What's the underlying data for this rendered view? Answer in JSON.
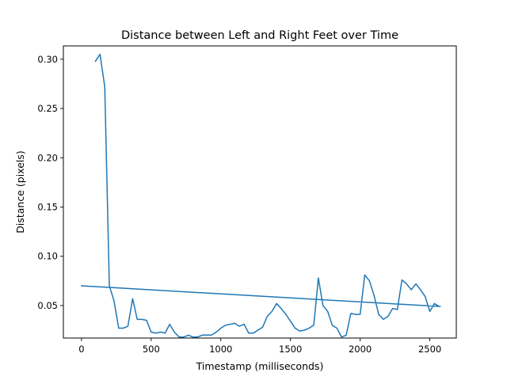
{
  "chart_data": {
    "type": "line",
    "title": "Distance between Left and Right Feet over Time",
    "xlabel": "Timestamp (milliseconds)",
    "ylabel": "Distance (pixels)",
    "xlim": [
      -130,
      2690
    ],
    "ylim": [
      0.017,
      0.3135
    ],
    "xticks": [
      0,
      500,
      1000,
      1500,
      2000,
      2500
    ],
    "xtick_labels": [
      "0",
      "500",
      "1000",
      "1500",
      "2000",
      "2500"
    ],
    "yticks": [
      0.05,
      0.1,
      0.15,
      0.2,
      0.25,
      0.3
    ],
    "ytick_labels": [
      "0.05",
      "0.10",
      "0.15",
      "0.20",
      "0.25",
      "0.30"
    ],
    "grid": false,
    "legend": false,
    "series": [
      {
        "color": "#1f77b4",
        "points": [
          [
            100,
            0.298
          ],
          [
            133,
            0.305
          ],
          [
            167,
            0.272
          ],
          [
            200,
            0.07
          ],
          [
            233,
            0.055
          ],
          [
            267,
            0.027
          ],
          [
            300,
            0.027
          ],
          [
            333,
            0.029
          ],
          [
            367,
            0.057
          ],
          [
            400,
            0.036
          ],
          [
            433,
            0.036
          ],
          [
            467,
            0.035
          ],
          [
            500,
            0.023
          ],
          [
            533,
            0.022
          ],
          [
            567,
            0.023
          ],
          [
            600,
            0.022
          ],
          [
            633,
            0.031
          ],
          [
            667,
            0.023
          ],
          [
            700,
            0.018
          ],
          [
            733,
            0.018
          ],
          [
            767,
            0.02
          ],
          [
            800,
            0.018
          ],
          [
            833,
            0.018
          ],
          [
            867,
            0.02
          ],
          [
            900,
            0.02
          ],
          [
            933,
            0.02
          ],
          [
            967,
            0.023
          ],
          [
            1000,
            0.027
          ],
          [
            1033,
            0.03
          ],
          [
            1067,
            0.031
          ],
          [
            1100,
            0.032
          ],
          [
            1133,
            0.029
          ],
          [
            1167,
            0.031
          ],
          [
            1200,
            0.022
          ],
          [
            1233,
            0.022
          ],
          [
            1267,
            0.025
          ],
          [
            1300,
            0.028
          ],
          [
            1333,
            0.039
          ],
          [
            1367,
            0.044
          ],
          [
            1400,
            0.052
          ],
          [
            1433,
            0.047
          ],
          [
            1467,
            0.041
          ],
          [
            1500,
            0.034
          ],
          [
            1533,
            0.027
          ],
          [
            1567,
            0.024
          ],
          [
            1600,
            0.025
          ],
          [
            1633,
            0.027
          ],
          [
            1667,
            0.03
          ],
          [
            1700,
            0.078
          ],
          [
            1733,
            0.05
          ],
          [
            1767,
            0.044
          ],
          [
            1800,
            0.03
          ],
          [
            1833,
            0.027
          ],
          [
            1867,
            0.018
          ],
          [
            1900,
            0.02
          ],
          [
            1933,
            0.042
          ],
          [
            1967,
            0.041
          ],
          [
            2000,
            0.041
          ],
          [
            2033,
            0.081
          ],
          [
            2067,
            0.075
          ],
          [
            2100,
            0.06
          ],
          [
            2133,
            0.041
          ],
          [
            2167,
            0.036
          ],
          [
            2200,
            0.039
          ],
          [
            2233,
            0.047
          ],
          [
            2267,
            0.046
          ],
          [
            2300,
            0.076
          ],
          [
            2333,
            0.072
          ],
          [
            2367,
            0.066
          ],
          [
            2400,
            0.072
          ],
          [
            2433,
            0.066
          ],
          [
            2467,
            0.059
          ],
          [
            2500,
            0.044
          ],
          [
            2533,
            0.052
          ],
          [
            2567,
            0.049
          ],
          [
            2575,
            0.049
          ],
          [
            0,
            0.07
          ]
        ]
      }
    ]
  }
}
